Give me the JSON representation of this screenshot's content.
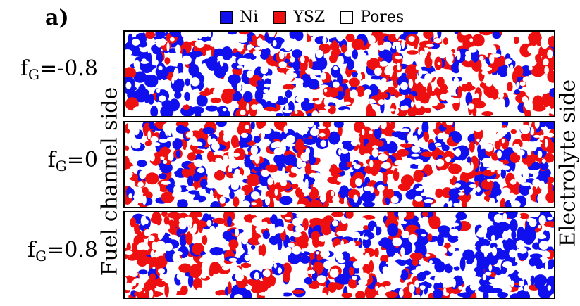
{
  "panel_label": "a)",
  "legend": [
    {
      "label": "Ni",
      "color": "#1010ee"
    },
    {
      "label": "YSZ",
      "color": "#ee1010"
    },
    {
      "label": "Pores",
      "color": "#ffffff"
    }
  ],
  "rows": [
    {
      "label_prefix": "f",
      "label_sub": "G",
      "label_value": "=-0.8",
      "ni_bias": 0.8
    },
    {
      "label_prefix": "f",
      "label_sub": "G",
      "label_value": "=0",
      "ni_bias": 0
    },
    {
      "label_prefix": "f",
      "label_sub": "G",
      "label_value": "=0.8",
      "ni_bias": -0.8
    }
  ],
  "left_side_label": "Fuel channel side",
  "right_side_label": "Electrolyte side"
}
